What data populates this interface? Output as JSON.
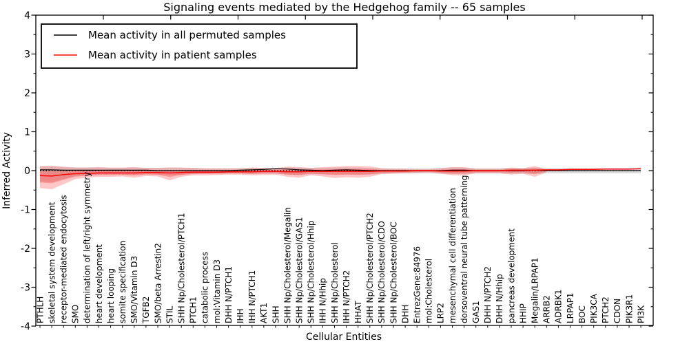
{
  "title": "Signaling events mediated by the Hedgehog family -- 65 samples",
  "axes": {
    "xlabel": "Cellular Entities",
    "ylabel": "Inferred Activity",
    "ylim": [
      -4,
      4
    ],
    "yticks": [
      4,
      3,
      2,
      1,
      0,
      -1,
      -2,
      -3,
      -4
    ],
    "grid": false
  },
  "legend": {
    "position": "upper-left",
    "entries": [
      {
        "label": "Mean activity in all permuted samples",
        "color": "#000000"
      },
      {
        "label": "Mean activity in patient samples",
        "color": "#ff0000"
      }
    ]
  },
  "colors": {
    "patient_line": "#ff0000",
    "permuted_line": "#000000",
    "patient_band": "rgba(255,0,0,0.22)",
    "permuted_band": "rgba(0,0,0,0.12)",
    "zero_line": "#000000"
  },
  "chart_data": {
    "type": "line",
    "title": "Signaling events mediated by the Hedgehog family -- 65 samples",
    "xlabel": "Cellular Entities",
    "ylabel": "Inferred Activity",
    "ylim": [
      -4,
      4
    ],
    "zero_reference_line": 0,
    "categories": [
      "PTHLH",
      "skeletal system development",
      "receptor-mediated endocytosis",
      "SMO",
      "determination of left/right symmetry",
      "heart development",
      "heart looping",
      "somite specification",
      "SMO/Vitamin D3",
      "TGFB2",
      "SMO/beta Arrestin2",
      "STIL",
      "SHH Np/Cholesterol/PTCH1",
      "PTCH1",
      "catabolic process",
      "mol:Vitamin D3",
      "DHH N/PTCH1",
      "IHH",
      "IHH N/PTCH1",
      "AKT1",
      "SHH",
      "SHH Np/Cholesterol/Megalin",
      "SHH Np/Cholesterol/GAS1",
      "SHH Np/Cholesterol/Hhip",
      "IHH N/Hhip",
      "SHH Np/Cholesterol",
      "IHH N/PTCH2",
      "HHAT",
      "SHH Np/Cholesterol/PTCH2",
      "SHH Np/Cholesterol/CDO",
      "SHH Np/Cholesterol/BOC",
      "DHH",
      "EntrezGene:84976",
      "mol:Cholesterol",
      "LRP2",
      "mesenchymal cell differentiation",
      "dorsoventral neural tube patterning",
      "GAS1",
      "DHH N/PTCH2",
      "DHH N/Hhip",
      "pancreas development",
      "HHIP",
      "Megalin/LRPAP1",
      "ARRB2",
      "ADRBK1",
      "LRPAP1",
      "BOC",
      "PIK3CA",
      "PTCH2",
      "CDON",
      "PIK3R1",
      "PI3K"
    ],
    "series": [
      {
        "name": "Mean activity in all permuted samples",
        "color": "#000000",
        "values": [
          0.02,
          0.02,
          0.01,
          0.01,
          0.01,
          0.01,
          0.01,
          0.01,
          0.01,
          0.01,
          0.0,
          0.0,
          0.0,
          0.0,
          0.0,
          0.0,
          0.0,
          0.01,
          0.02,
          0.03,
          0.05,
          0.04,
          0.02,
          0.01,
          0.0,
          0.01,
          0.02,
          0.01,
          0.0,
          0.0,
          0.0,
          0.0,
          0.0,
          0.0,
          0.0,
          0.01,
          0.01,
          0.0,
          0.0,
          0.0,
          0.0,
          0.0,
          0.01,
          0.0,
          0.0,
          0.0,
          0.0,
          0.0,
          0.0,
          0.0,
          0.0,
          0.0
        ]
      },
      {
        "name": "Mean activity in patient samples",
        "color": "#ff0000",
        "values": [
          -0.13,
          -0.14,
          -0.1,
          -0.08,
          -0.07,
          -0.06,
          -0.06,
          -0.06,
          -0.06,
          -0.05,
          -0.05,
          -0.06,
          -0.05,
          -0.04,
          -0.04,
          -0.04,
          -0.03,
          -0.03,
          -0.03,
          -0.02,
          -0.02,
          -0.03,
          -0.03,
          -0.02,
          -0.02,
          -0.02,
          -0.02,
          -0.02,
          -0.02,
          -0.01,
          -0.01,
          -0.01,
          0.0,
          0.0,
          -0.01,
          -0.01,
          -0.01,
          0.0,
          0.0,
          0.0,
          0.01,
          0.01,
          0.01,
          0.02,
          0.02,
          0.03,
          0.03,
          0.03,
          0.04,
          0.04,
          0.04,
          0.05
        ]
      }
    ],
    "bands": [
      {
        "name": "permuted-samples-std-band",
        "color": "rgba(0,0,0,0.12)",
        "upper": [
          0.1,
          0.11,
          0.09,
          0.08,
          0.08,
          0.08,
          0.07,
          0.07,
          0.08,
          0.07,
          0.07,
          0.08,
          0.07,
          0.07,
          0.06,
          0.06,
          0.06,
          0.06,
          0.07,
          0.07,
          0.07,
          0.08,
          0.08,
          0.07,
          0.07,
          0.08,
          0.08,
          0.08,
          0.07,
          0.06,
          0.06,
          0.06,
          0.06,
          0.06,
          0.07,
          0.08,
          0.08,
          0.06,
          0.06,
          0.06,
          0.07,
          0.07,
          0.08,
          0.07,
          0.07,
          0.07,
          0.07,
          0.07,
          0.07,
          0.07,
          0.07,
          0.08
        ],
        "lower": [
          -0.28,
          -0.3,
          -0.22,
          -0.14,
          -0.12,
          -0.1,
          -0.1,
          -0.1,
          -0.11,
          -0.09,
          -0.1,
          -0.13,
          -0.1,
          -0.09,
          -0.08,
          -0.08,
          -0.08,
          -0.08,
          -0.09,
          -0.08,
          -0.08,
          -0.1,
          -0.11,
          -0.09,
          -0.09,
          -0.1,
          -0.1,
          -0.1,
          -0.1,
          -0.08,
          -0.07,
          -0.07,
          -0.07,
          -0.07,
          -0.08,
          -0.09,
          -0.09,
          -0.07,
          -0.07,
          -0.07,
          -0.08,
          -0.08,
          -0.09,
          -0.07,
          -0.07,
          -0.07,
          -0.07,
          -0.07,
          -0.07,
          -0.07,
          -0.07,
          -0.07
        ]
      },
      {
        "name": "patient-samples-std-band",
        "color": "rgba(255,0,0,0.22)",
        "last_index_with_band": 43,
        "upper": [
          0.12,
          0.13,
          0.1,
          0.08,
          0.08,
          0.09,
          0.08,
          0.08,
          0.09,
          0.07,
          0.07,
          0.08,
          0.08,
          0.07,
          0.06,
          0.06,
          0.06,
          0.06,
          0.08,
          0.07,
          0.06,
          0.1,
          0.09,
          0.07,
          0.09,
          0.1,
          0.12,
          0.12,
          0.11,
          0.06,
          0.05,
          0.05,
          0.04,
          0.04,
          0.06,
          0.09,
          0.09,
          0.05,
          0.05,
          0.05,
          0.08,
          0.06,
          0.12,
          0.03,
          0.02,
          0.03,
          0.03,
          0.03,
          0.04,
          0.04,
          0.04,
          0.05
        ],
        "lower": [
          -0.45,
          -0.48,
          -0.35,
          -0.22,
          -0.18,
          -0.16,
          -0.16,
          -0.15,
          -0.18,
          -0.14,
          -0.15,
          -0.25,
          -0.16,
          -0.12,
          -0.12,
          -0.11,
          -0.1,
          -0.1,
          -0.12,
          -0.11,
          -0.1,
          -0.16,
          -0.18,
          -0.12,
          -0.15,
          -0.19,
          -0.17,
          -0.18,
          -0.16,
          -0.09,
          -0.08,
          -0.07,
          -0.06,
          -0.05,
          -0.08,
          -0.12,
          -0.12,
          -0.07,
          -0.07,
          -0.07,
          -0.1,
          -0.08,
          -0.16,
          -0.04,
          0.02,
          0.03,
          0.03,
          0.03,
          0.04,
          0.04,
          0.04,
          0.05
        ]
      }
    ]
  }
}
